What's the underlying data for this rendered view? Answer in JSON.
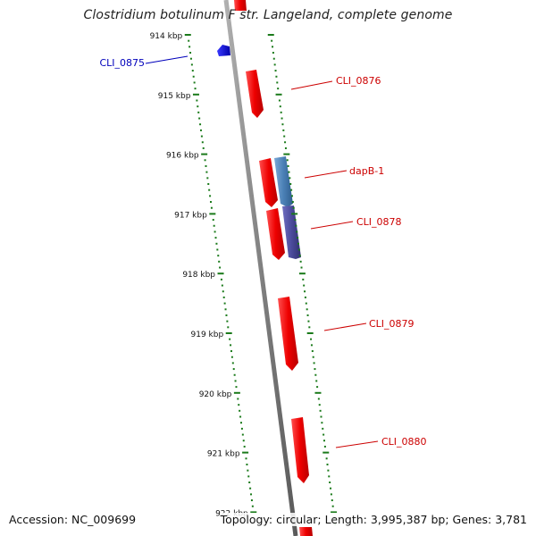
{
  "title": "Clostridium botulinum F str. Langeland, complete genome",
  "footer": {
    "accession": "Accession: NC_009699",
    "summary": "Topology: circular; Length: 3,995,387 bp; Genes: 3,781"
  },
  "ruler": {
    "color": "#1a7a1a",
    "ticks": [
      "914 kbp",
      "915 kbp",
      "916 kbp",
      "917 kbp",
      "918 kbp",
      "919 kbp",
      "920 kbp",
      "921 kbp",
      "922 kbp"
    ]
  },
  "colors": {
    "backbone": "#888888",
    "forward_gene": "#ee0000",
    "reverse_gene": "#0000dd",
    "steel_gene": "#4a7fb5",
    "slate_gene": "#4a4a9a",
    "label_red": "#cc0000",
    "label_blue": "#0000bb"
  },
  "genes": [
    {
      "label": "CLI_0875",
      "strand": "reverse",
      "color_key": "reverse_gene"
    },
    {
      "label": "CLI_0876",
      "strand": "forward",
      "color_key": "forward_gene"
    },
    {
      "label": "dapB-1",
      "strand": "forward",
      "color_key": "steel_gene"
    },
    {
      "label": "CLI_0878",
      "strand": "forward",
      "color_key": "slate_gene"
    },
    {
      "label": "CLI_0879",
      "strand": "forward",
      "color_key": "forward_gene"
    },
    {
      "label": "CLI_0880",
      "strand": "forward",
      "color_key": "forward_gene"
    }
  ]
}
